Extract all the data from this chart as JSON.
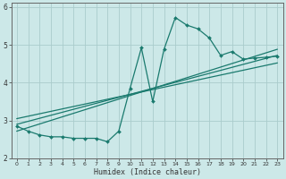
{
  "xlabel": "Humidex (Indice chaleur)",
  "bg_color": "#cce8e8",
  "line_color": "#1a7a6e",
  "grid_color": "#aacccc",
  "axis_color": "#666666",
  "xlim": [
    -0.5,
    23.5
  ],
  "ylim": [
    2,
    6.1
  ],
  "yticks": [
    2,
    3,
    4,
    5,
    6
  ],
  "xticks": [
    0,
    1,
    2,
    3,
    4,
    5,
    6,
    7,
    8,
    9,
    10,
    11,
    12,
    13,
    14,
    15,
    16,
    17,
    18,
    19,
    20,
    21,
    22,
    23
  ],
  "xtick_labels": [
    "0",
    "1",
    "2",
    "3",
    "4",
    "5",
    "6",
    "7",
    "8",
    "9",
    "10",
    "11",
    "12",
    "13",
    "14",
    "15",
    "16",
    "17",
    "18",
    "19",
    "20",
    "21",
    "22",
    "23"
  ],
  "curve_x": [
    0,
    1,
    2,
    3,
    4,
    5,
    6,
    7,
    8,
    9,
    10,
    11,
    12,
    13,
    14,
    15,
    16,
    17,
    18,
    19,
    20,
    21,
    22,
    23
  ],
  "curve_y": [
    2.85,
    2.72,
    2.62,
    2.57,
    2.57,
    2.53,
    2.53,
    2.53,
    2.44,
    2.72,
    3.85,
    4.92,
    3.5,
    4.88,
    5.72,
    5.52,
    5.42,
    5.18,
    4.72,
    4.82,
    4.62,
    4.65,
    4.67,
    4.7
  ],
  "line1_x": [
    0,
    23
  ],
  "line1_y": [
    2.9,
    4.72
  ],
  "line2_x": [
    0,
    23
  ],
  "line2_y": [
    3.05,
    4.52
  ],
  "line3_x": [
    0,
    23
  ],
  "line3_y": [
    2.72,
    4.88
  ]
}
